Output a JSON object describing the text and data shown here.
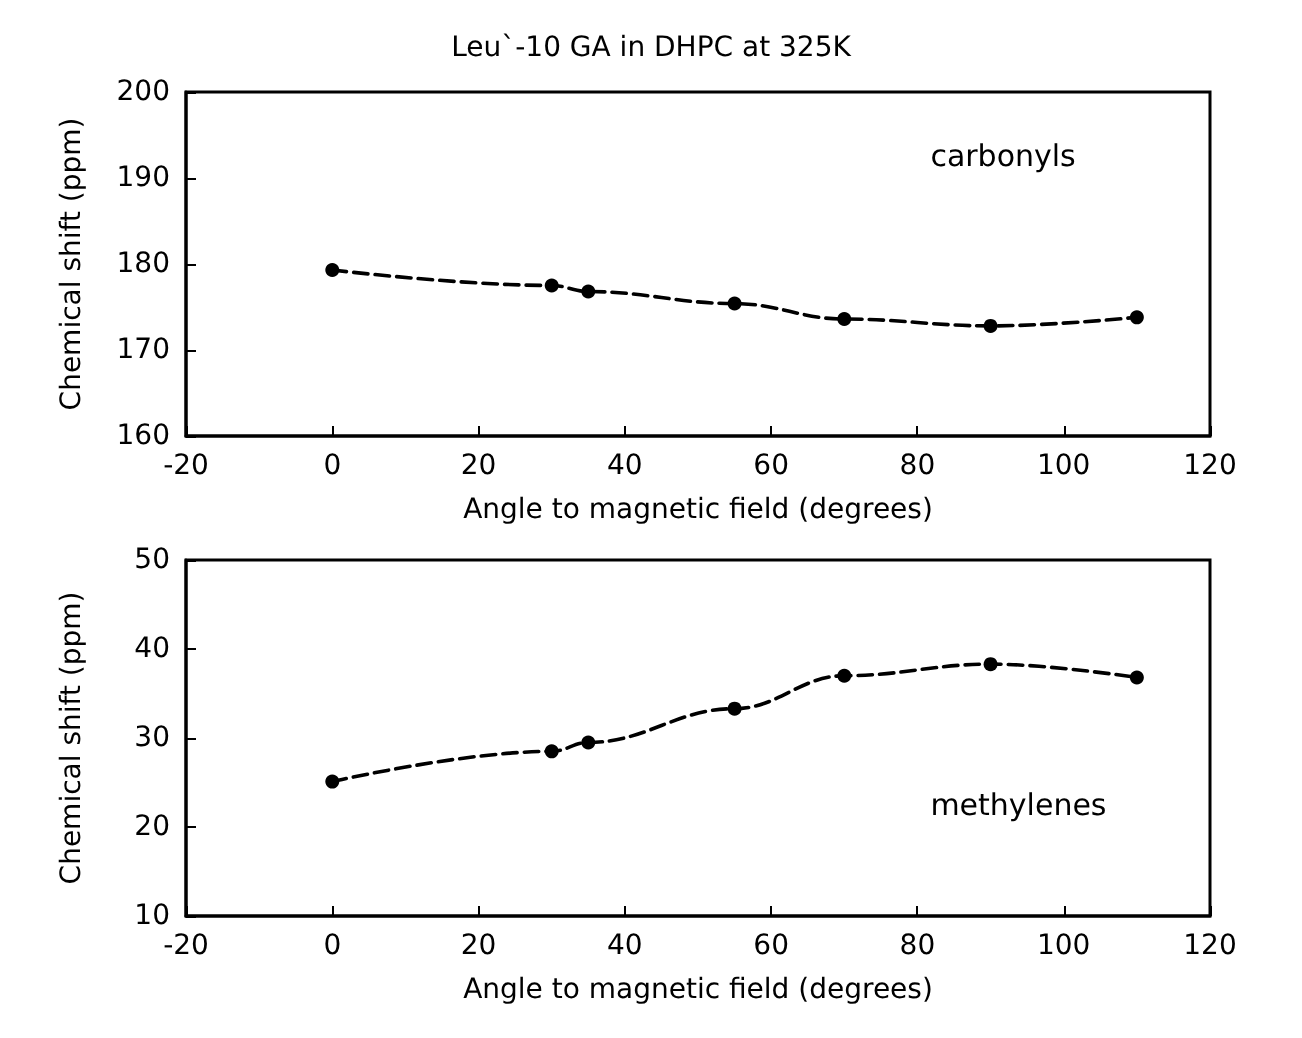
{
  "chart_data": [
    {
      "type": "line",
      "title": "Leu`-10 GA in DHPC at 325K",
      "xlabel": "Angle to magnetic field (degrees)",
      "ylabel": "Chemical shift (ppm)",
      "x": [
        0,
        30,
        35,
        55,
        70,
        90,
        110
      ],
      "series": [
        {
          "name": "carbonyls",
          "color": "#000000",
          "values": [
            179.3,
            177.5,
            176.8,
            175.4,
            173.6,
            172.8,
            173.8
          ]
        }
      ],
      "xlim": [
        -20,
        120
      ],
      "xticks": [
        -20,
        0,
        20,
        40,
        60,
        80,
        100,
        120
      ],
      "ylim": [
        160,
        200
      ],
      "yticks": [
        160,
        170,
        180,
        190,
        200
      ],
      "grid": false,
      "legend": false,
      "marker": "circle",
      "line_style": "dashed"
    },
    {
      "type": "line",
      "xlabel": "Angle to magnetic field (degrees)",
      "ylabel": "Chemical shift (ppm)",
      "x": [
        0,
        30,
        35,
        55,
        70,
        90,
        110
      ],
      "series": [
        {
          "name": "methylenes",
          "color": "#000000",
          "values": [
            25.1,
            28.5,
            29.5,
            33.3,
            37.0,
            38.3,
            36.8
          ]
        }
      ],
      "xlim": [
        -20,
        120
      ],
      "xticks": [
        -20,
        0,
        20,
        40,
        60,
        80,
        100,
        120
      ],
      "ylim": [
        10,
        50
      ],
      "yticks": [
        10,
        20,
        30,
        40,
        50
      ],
      "grid": false,
      "legend": false,
      "marker": "circle",
      "line_style": "dashed"
    }
  ]
}
